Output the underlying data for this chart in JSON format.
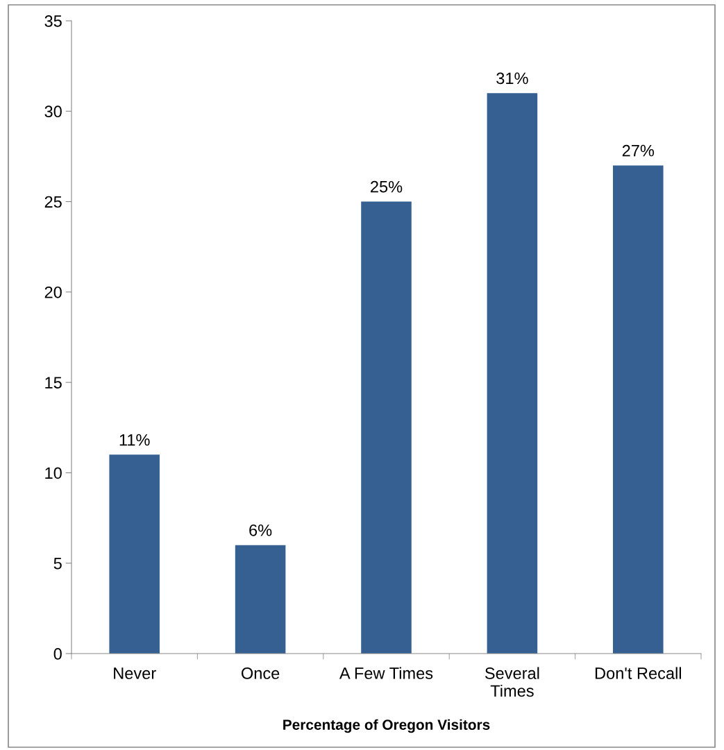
{
  "chart_data": {
    "type": "bar",
    "xlabel": "Percentage of Oregon Visitors",
    "categories": [
      "Never",
      "Once",
      "A Few Times",
      "Several\nTimes",
      "Don't Recall"
    ],
    "values": [
      11,
      6,
      25,
      31,
      27
    ],
    "value_labels": [
      "11%",
      "6%",
      "25%",
      "31%",
      "27%"
    ],
    "color": "#376092",
    "ylim": [
      0,
      35
    ],
    "yticks": [
      0,
      5,
      10,
      15,
      20,
      25,
      30,
      35
    ],
    "grid": false,
    "legend": false
  }
}
